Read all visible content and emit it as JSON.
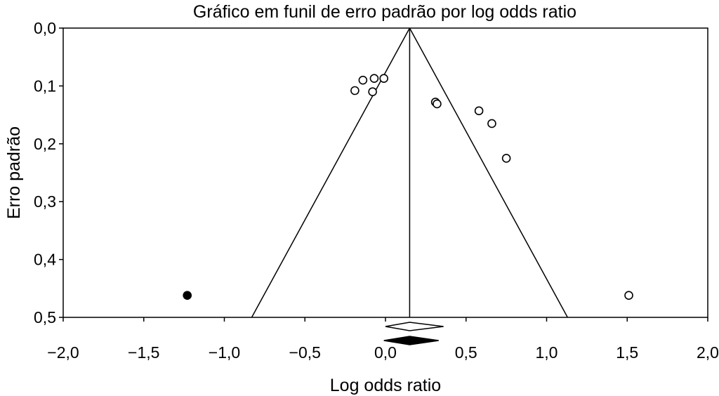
{
  "chart_data": {
    "type": "scatter",
    "title": "Gráfico em funil de erro padrão por log odds ratio",
    "xlabel": "Log odds ratio",
    "ylabel": "Erro padrão",
    "xlim": [
      -2.0,
      2.0
    ],
    "ylim": [
      0.0,
      0.5
    ],
    "y_inverted": true,
    "x_ticks": [
      "−2,0",
      "−1,5",
      "−1,0",
      "−0,5",
      "0,0",
      "0,5",
      "1,0",
      "1,5",
      "2,0"
    ],
    "x_tick_values": [
      -2.0,
      -1.5,
      -1.0,
      -0.5,
      0.0,
      0.5,
      1.0,
      1.5,
      2.0
    ],
    "y_ticks": [
      "0,0",
      "0,1",
      "0,2",
      "0,3",
      "0,4",
      "0,5"
    ],
    "y_tick_values": [
      0.0,
      0.1,
      0.2,
      0.3,
      0.4,
      0.5
    ],
    "grid": false,
    "funnel": {
      "center": 0.15,
      "limit_at_max_se": [
        -0.83,
        1.13
      ]
    },
    "series": [
      {
        "marker": "open-circle",
        "points": [
          {
            "x": -0.19,
            "y": 0.108
          },
          {
            "x": -0.14,
            "y": 0.09
          },
          {
            "x": -0.07,
            "y": 0.087
          },
          {
            "x": -0.01,
            "y": 0.087
          },
          {
            "x": -0.08,
            "y": 0.11
          },
          {
            "x": 0.31,
            "y": 0.128
          },
          {
            "x": 0.32,
            "y": 0.131
          },
          {
            "x": 0.58,
            "y": 0.143
          },
          {
            "x": 0.66,
            "y": 0.165
          },
          {
            "x": 0.75,
            "y": 0.225
          },
          {
            "x": 1.51,
            "y": 0.462
          }
        ]
      },
      {
        "marker": "filled-circle",
        "points": [
          {
            "x": -1.23,
            "y": 0.462
          }
        ]
      }
    ],
    "summary_diamonds": [
      {
        "style": "open",
        "center": 0.15,
        "ci": [
          0.0,
          0.36
        ]
      },
      {
        "style": "filled",
        "center": 0.15,
        "ci": [
          -0.01,
          0.33
        ]
      }
    ]
  }
}
